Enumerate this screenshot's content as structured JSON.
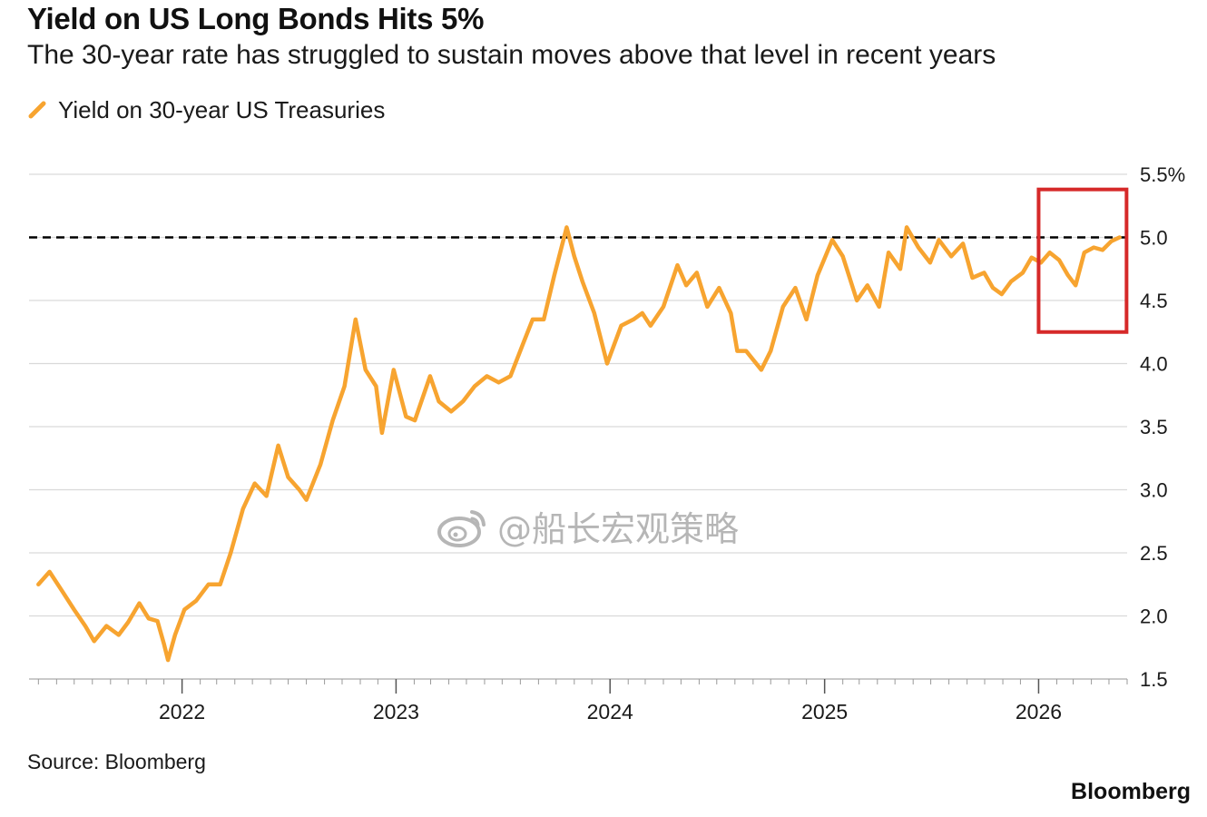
{
  "header": {
    "title": "Yield on US Long Bonds Hits 5%",
    "subtitle": "The 30-year rate has struggled to sustain moves above that level in recent years"
  },
  "legend": {
    "label": "Yield on 30-year US Treasuries",
    "icon": "orange-slash-swatch"
  },
  "colors": {
    "series": "#F7A430",
    "reference_line": "#000000",
    "grid": "#D9D9D9",
    "highlight_box": "#D62929",
    "text": "#111111",
    "watermark": "#9A9A9A"
  },
  "footer": {
    "source": "Source: Bloomberg",
    "brand": "Bloomberg"
  },
  "watermark": {
    "text": "@船长宏观策略",
    "icon": "weibo-logo-icon"
  },
  "chart_data": {
    "type": "line",
    "title": "Yield on US Long Bonds Hits 5%",
    "subtitle": "The 30-year rate has struggled to sustain moves above that level in recent years",
    "xlabel": "",
    "ylabel": "",
    "x_range": [
      "2021-04-15",
      "2026-06-01"
    ],
    "x_tick_labels": [
      "2022",
      "2023",
      "2024",
      "2025",
      "2026"
    ],
    "x_tick_dates": [
      "2022-01-01",
      "2023-01-01",
      "2024-01-01",
      "2025-01-01",
      "2026-01-01"
    ],
    "ylim": [
      1.5,
      5.5
    ],
    "y_ticks": [
      1.5,
      2.0,
      2.5,
      3.0,
      3.5,
      4.0,
      4.5,
      5.0,
      5.5
    ],
    "y_tick_labels": [
      "1.5",
      "2.0",
      "2.5",
      "3.0",
      "3.5",
      "4.0",
      "4.5",
      "5.0",
      "5.5%"
    ],
    "y_axis_position": "right",
    "grid": "horizontal",
    "legend_position": "top-left",
    "reference_line": {
      "y": 5.0,
      "style": "dashed"
    },
    "highlight_region": {
      "x_start": "2026-01-01",
      "x_end": "2026-05-31",
      "y_start": 4.25,
      "y_end": 5.38
    },
    "series": [
      {
        "name": "Yield on 30-year US Treasuries",
        "points": [
          [
            "2021-05-01",
            2.25
          ],
          [
            "2021-05-20",
            2.35
          ],
          [
            "2021-06-10",
            2.2
          ],
          [
            "2021-07-01",
            2.05
          ],
          [
            "2021-07-20",
            1.92
          ],
          [
            "2021-08-04",
            1.8
          ],
          [
            "2021-08-25",
            1.92
          ],
          [
            "2021-09-15",
            1.85
          ],
          [
            "2021-10-01",
            1.95
          ],
          [
            "2021-10-20",
            2.1
          ],
          [
            "2021-11-05",
            1.98
          ],
          [
            "2021-11-20",
            1.96
          ],
          [
            "2021-12-01",
            1.78
          ],
          [
            "2021-12-08",
            1.65
          ],
          [
            "2021-12-20",
            1.85
          ],
          [
            "2022-01-05",
            2.05
          ],
          [
            "2022-01-25",
            2.12
          ],
          [
            "2022-02-15",
            2.25
          ],
          [
            "2022-03-07",
            2.25
          ],
          [
            "2022-03-25",
            2.5
          ],
          [
            "2022-04-15",
            2.85
          ],
          [
            "2022-05-05",
            3.05
          ],
          [
            "2022-05-25",
            2.95
          ],
          [
            "2022-06-14",
            3.35
          ],
          [
            "2022-07-01",
            3.1
          ],
          [
            "2022-07-20",
            3.0
          ],
          [
            "2022-08-01",
            2.92
          ],
          [
            "2022-08-25",
            3.2
          ],
          [
            "2022-09-15",
            3.55
          ],
          [
            "2022-10-05",
            3.82
          ],
          [
            "2022-10-24",
            4.35
          ],
          [
            "2022-11-10",
            3.95
          ],
          [
            "2022-11-28",
            3.82
          ],
          [
            "2022-12-08",
            3.45
          ],
          [
            "2022-12-28",
            3.95
          ],
          [
            "2023-01-18",
            3.58
          ],
          [
            "2023-02-02",
            3.55
          ],
          [
            "2023-02-28",
            3.9
          ],
          [
            "2023-03-15",
            3.7
          ],
          [
            "2023-04-05",
            3.62
          ],
          [
            "2023-04-25",
            3.7
          ],
          [
            "2023-05-15",
            3.82
          ],
          [
            "2023-06-05",
            3.9
          ],
          [
            "2023-06-25",
            3.85
          ],
          [
            "2023-07-15",
            3.9
          ],
          [
            "2023-08-05",
            4.15
          ],
          [
            "2023-08-22",
            4.35
          ],
          [
            "2023-09-10",
            4.35
          ],
          [
            "2023-09-28",
            4.7
          ],
          [
            "2023-10-19",
            5.08
          ],
          [
            "2023-11-01",
            4.85
          ],
          [
            "2023-11-15",
            4.65
          ],
          [
            "2023-12-05",
            4.4
          ],
          [
            "2023-12-27",
            4.0
          ],
          [
            "2024-01-20",
            4.3
          ],
          [
            "2024-02-10",
            4.35
          ],
          [
            "2024-02-25",
            4.4
          ],
          [
            "2024-03-10",
            4.3
          ],
          [
            "2024-04-01",
            4.45
          ],
          [
            "2024-04-25",
            4.78
          ],
          [
            "2024-05-10",
            4.62
          ],
          [
            "2024-05-28",
            4.72
          ],
          [
            "2024-06-15",
            4.45
          ],
          [
            "2024-07-05",
            4.6
          ],
          [
            "2024-07-25",
            4.4
          ],
          [
            "2024-08-05",
            4.1
          ],
          [
            "2024-08-20",
            4.1
          ],
          [
            "2024-09-15",
            3.95
          ],
          [
            "2024-10-01",
            4.1
          ],
          [
            "2024-10-22",
            4.45
          ],
          [
            "2024-11-12",
            4.6
          ],
          [
            "2024-12-01",
            4.35
          ],
          [
            "2024-12-20",
            4.7
          ],
          [
            "2025-01-14",
            4.98
          ],
          [
            "2025-02-01",
            4.85
          ],
          [
            "2025-02-25",
            4.5
          ],
          [
            "2025-03-15",
            4.62
          ],
          [
            "2025-04-04",
            4.45
          ],
          [
            "2025-04-20",
            4.88
          ],
          [
            "2025-05-10",
            4.75
          ],
          [
            "2025-05-21",
            5.08
          ],
          [
            "2025-06-10",
            4.92
          ],
          [
            "2025-06-30",
            4.8
          ],
          [
            "2025-07-15",
            4.98
          ],
          [
            "2025-08-05",
            4.85
          ],
          [
            "2025-08-25",
            4.95
          ],
          [
            "2025-09-10",
            4.68
          ],
          [
            "2025-09-30",
            4.72
          ],
          [
            "2025-10-15",
            4.6
          ],
          [
            "2025-10-30",
            4.55
          ],
          [
            "2025-11-15",
            4.65
          ],
          [
            "2025-12-05",
            4.72
          ],
          [
            "2025-12-20",
            4.84
          ],
          [
            "2026-01-05",
            4.8
          ],
          [
            "2026-01-20",
            4.88
          ],
          [
            "2026-02-05",
            4.82
          ],
          [
            "2026-02-20",
            4.7
          ],
          [
            "2026-03-05",
            4.62
          ],
          [
            "2026-03-20",
            4.88
          ],
          [
            "2026-04-05",
            4.92
          ],
          [
            "2026-04-20",
            4.9
          ],
          [
            "2026-05-05",
            4.97
          ],
          [
            "2026-05-19",
            5.0
          ]
        ]
      }
    ]
  }
}
